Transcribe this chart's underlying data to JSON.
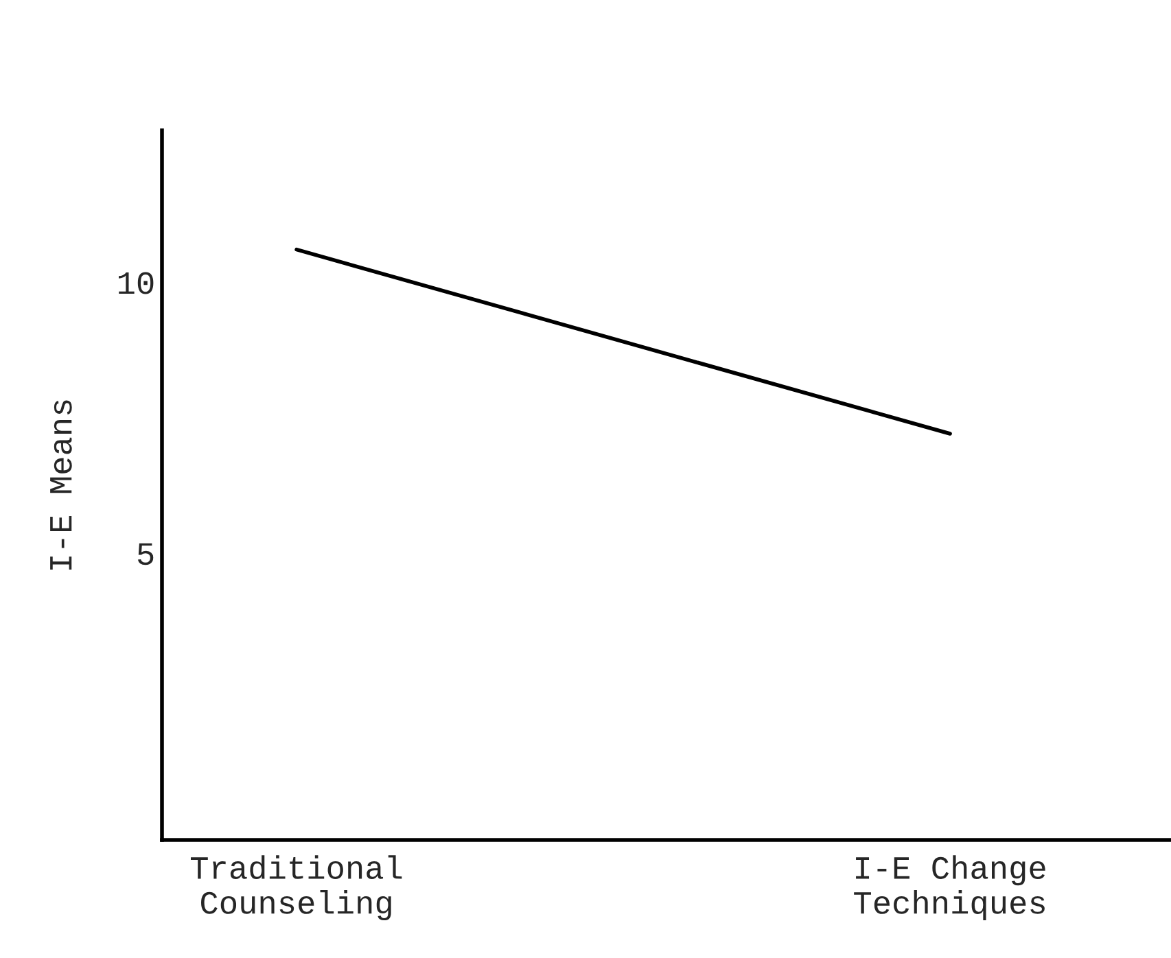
{
  "chart_data": {
    "type": "line",
    "ylabel": "I-E Means",
    "categories": [
      "Traditional\nCounseling",
      "I-E Change\nTechniques"
    ],
    "series": [
      {
        "color": "#000000",
        "values": [
          10.6,
          7.2
        ]
      }
    ],
    "ylim": [
      -0.3,
      12.8
    ],
    "yticks": [
      5,
      10
    ],
    "grid": false,
    "marker": "none",
    "line_style": "solid"
  }
}
